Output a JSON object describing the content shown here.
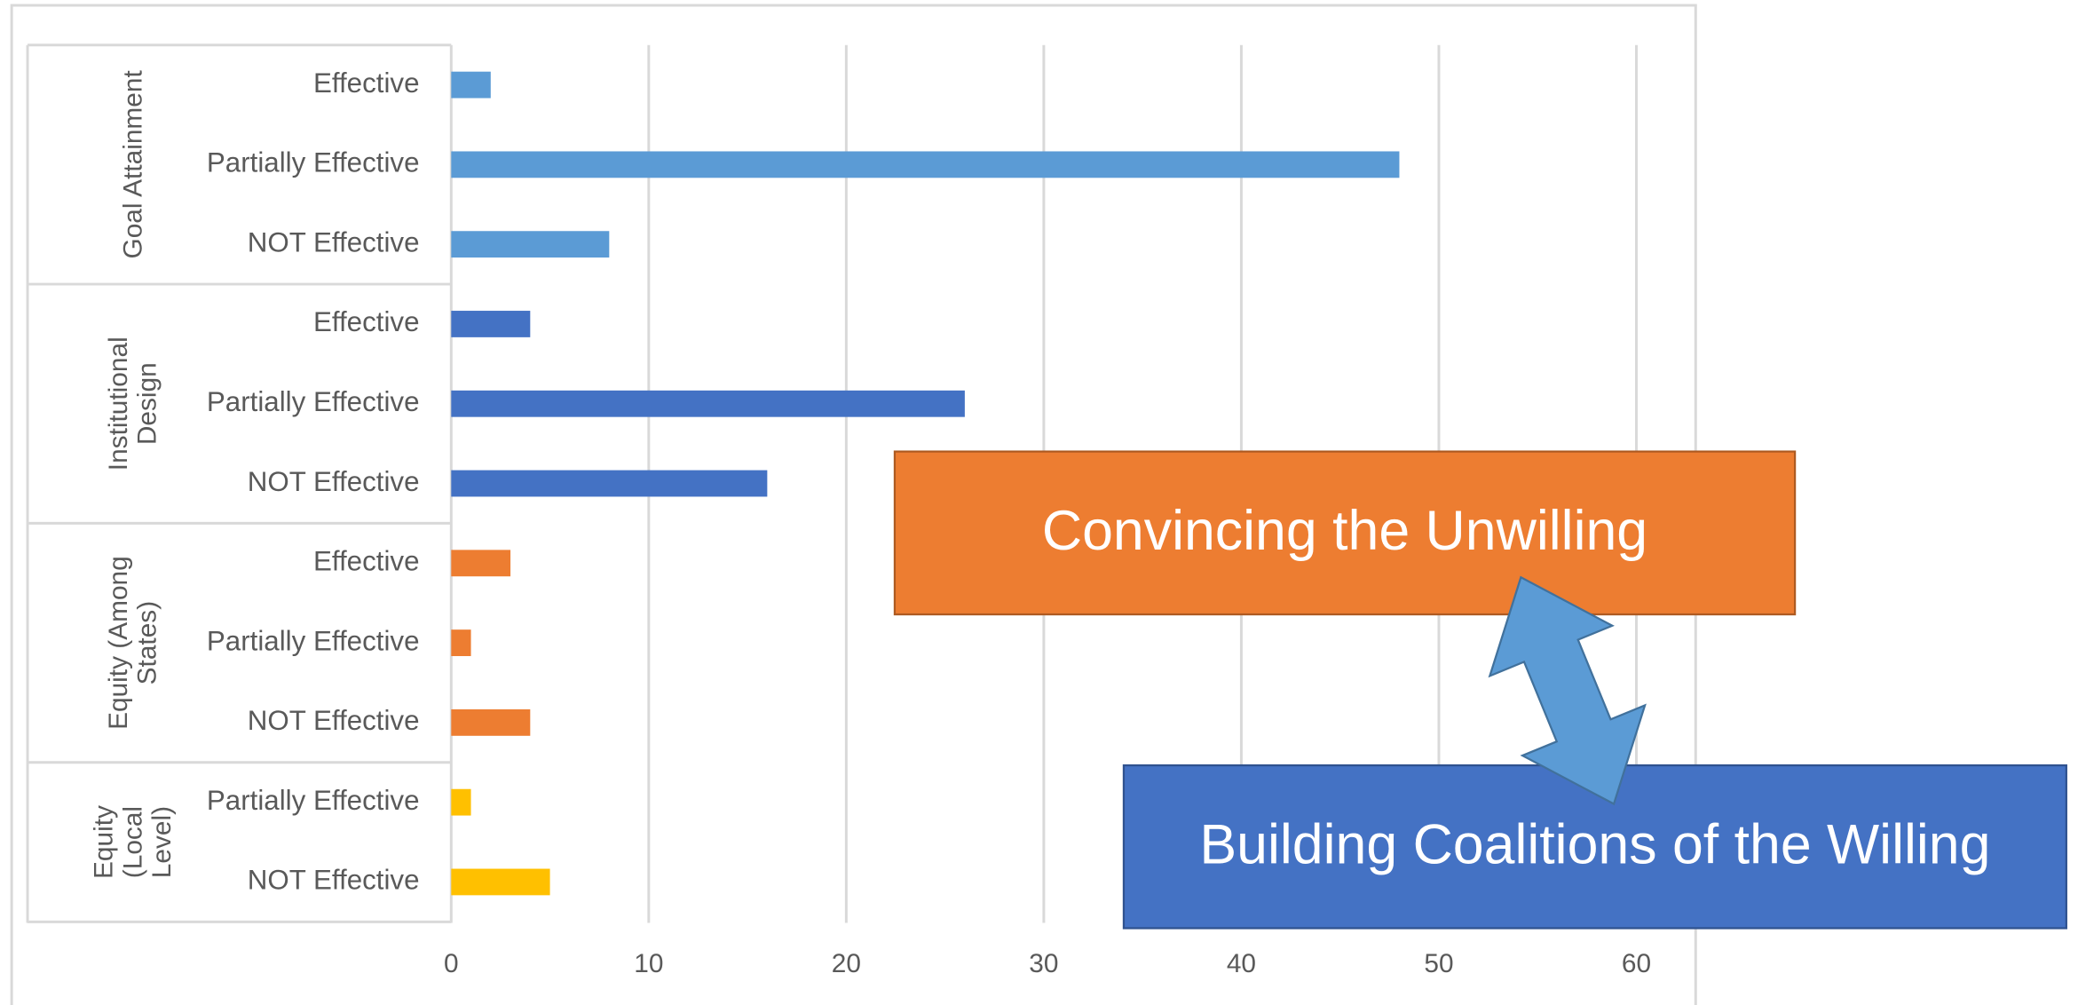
{
  "chart_data": {
    "type": "bar",
    "orientation": "horizontal",
    "series": [
      {
        "name": "Goal Attainment",
        "color": "#5b9bd5",
        "categories": [
          "Effective",
          "Partially Effective",
          "NOT Effective"
        ],
        "values": [
          2,
          48,
          8
        ]
      },
      {
        "name": "Institutional Design",
        "color": "#4472c4",
        "categories": [
          "Effective",
          "Partially Effective",
          "NOT Effective"
        ],
        "values": [
          4,
          26,
          16
        ]
      },
      {
        "name": "Equity (Among States)",
        "color": "#ed7d31",
        "categories": [
          "Effective",
          "Partially Effective",
          "NOT Effective"
        ],
        "values": [
          3,
          1,
          4
        ]
      },
      {
        "name": "Equity (Local Level)",
        "color": "#ffc000",
        "categories": [
          "Partially Effective",
          "NOT Effective"
        ],
        "values": [
          1,
          5
        ]
      }
    ],
    "xlim": [
      0,
      63
    ],
    "xticks": [
      0,
      10,
      20,
      30,
      40,
      50,
      60
    ],
    "grid": true,
    "annotations": [
      "Convincing the Unwilling",
      "Building Coalitions of the Willing"
    ]
  }
}
